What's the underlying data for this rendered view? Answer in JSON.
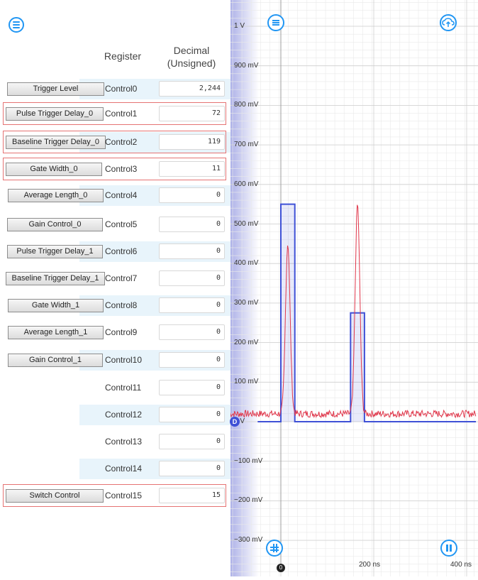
{
  "registers": {
    "header_register": "Register",
    "header_decimal_line1": "Decimal",
    "header_decimal_line2": "(Unsigned)",
    "rows": [
      {
        "name": "Control0",
        "value": "2,244",
        "button": "Trigger Level",
        "highlight": false
      },
      {
        "name": "Control1",
        "value": "72",
        "button": "Pulse Trigger Delay_0",
        "highlight": true
      },
      {
        "name": "Control2",
        "value": "119",
        "button": "Baseline Trigger Delay_0",
        "highlight": true
      },
      {
        "name": "Control3",
        "value": "11",
        "button": "Gate Width_0",
        "highlight": true
      },
      {
        "name": "Control4",
        "value": "0",
        "button": "Average Length_0",
        "highlight": false
      },
      {
        "name": "Control5",
        "value": "0",
        "button": "Gain Control_0",
        "highlight": false
      },
      {
        "name": "Control6",
        "value": "0",
        "button": "Pulse Trigger Delay_1",
        "highlight": false
      },
      {
        "name": "Control7",
        "value": "0",
        "button": "Baseline Trigger Delay_1",
        "highlight": false
      },
      {
        "name": "Control8",
        "value": "0",
        "button": "Gate Width_1",
        "highlight": false
      },
      {
        "name": "Control9",
        "value": "0",
        "button": "Average Length_1",
        "highlight": false
      },
      {
        "name": "Control10",
        "value": "0",
        "button": "Gain Control_1",
        "highlight": false
      },
      {
        "name": "Control11",
        "value": "0",
        "button": "",
        "highlight": false
      },
      {
        "name": "Control12",
        "value": "0",
        "button": "",
        "highlight": false
      },
      {
        "name": "Control13",
        "value": "0",
        "button": "",
        "highlight": false
      },
      {
        "name": "Control14",
        "value": "0",
        "button": "",
        "highlight": false
      },
      {
        "name": "Control15",
        "value": "15",
        "button": "Switch Control",
        "highlight": true
      }
    ]
  },
  "scope": {
    "y_labels": [
      "1 V",
      "900 mV",
      "800 mV",
      "700 mV",
      "600 mV",
      "500 mV",
      "400 mV",
      "300 mV",
      "200 mV",
      "100 mV",
      "0 V",
      "−100 mV",
      "−200 mV",
      "−300 mV"
    ],
    "x_labels": [
      "200 ns",
      "400 ns"
    ],
    "trigger_marker": "0",
    "channel_marker": "D",
    "colors": {
      "digital_trace": "#3f51d6",
      "analog_trace": "#e0364a",
      "accent": "#2196f3"
    },
    "icons": [
      "menu-icon",
      "cloud-upload-icon",
      "grid-icon",
      "pause-icon"
    ],
    "traces": {
      "digital": [
        [
          -50,
          0
        ],
        [
          0,
          0
        ],
        [
          0,
          0.55
        ],
        [
          30,
          0.55
        ],
        [
          30,
          0
        ],
        [
          150,
          0
        ],
        [
          150,
          0.275
        ],
        [
          180,
          0.275
        ],
        [
          180,
          0
        ],
        [
          420,
          0
        ]
      ],
      "analog_peaks": [
        {
          "t": 15,
          "v": 0.45
        },
        {
          "t": 165,
          "v": 0.55
        }
      ],
      "analog_baseline": 0.02
    }
  }
}
